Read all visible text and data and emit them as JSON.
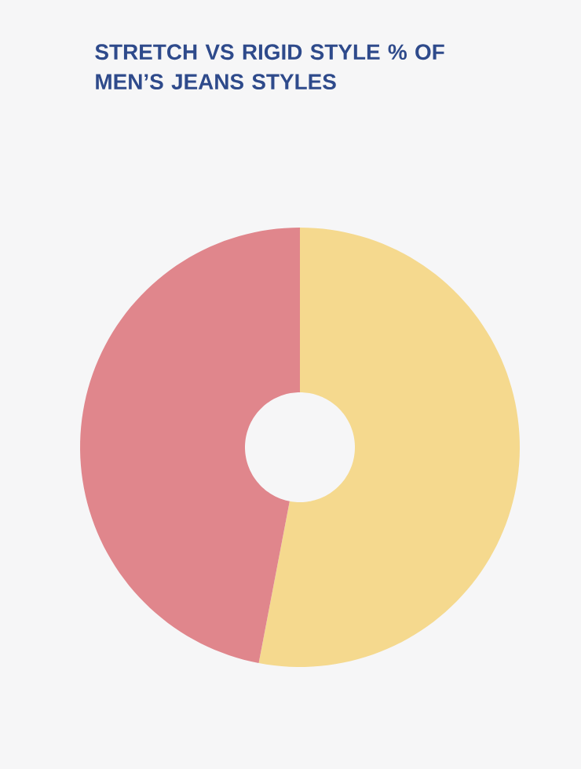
{
  "chart_data": {
    "type": "donut",
    "title": "STRETCH VS RIGID STYLE % OF MEN’S JEANS STYLES",
    "categories": [
      null,
      null
    ],
    "values": [
      53,
      47
    ],
    "colors": [
      "#f5d98e",
      "#e0868c"
    ]
  }
}
